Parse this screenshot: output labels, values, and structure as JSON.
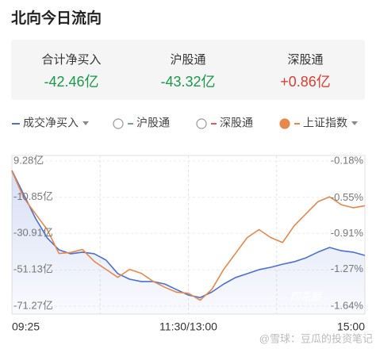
{
  "header": {
    "title": "北向今日流向"
  },
  "summary": [
    {
      "label": "合计净买入",
      "value": "-42.46亿",
      "color": "#1a9a4a"
    },
    {
      "label": "沪股通",
      "value": "-43.32亿",
      "color": "#1a9a4a"
    },
    {
      "label": "深股通",
      "value": "+0.86亿",
      "color": "#e03c31"
    }
  ],
  "watermarks": [
    "同花顺",
    "@雪球：豆瓜的投资笔记"
  ],
  "chart_data": {
    "type": "line",
    "x": [
      0,
      8,
      16,
      24,
      32,
      40,
      48,
      56,
      64,
      72,
      80,
      88,
      96,
      104,
      112,
      120,
      128,
      136,
      144,
      152,
      160,
      168,
      176,
      184,
      192,
      200,
      208,
      216,
      224,
      232,
      240
    ],
    "xlim": [
      0,
      240
    ],
    "xticks": [
      {
        "value": 0,
        "label": "09:25"
      },
      {
        "value": 120,
        "label": "11:30/13:00"
      },
      {
        "value": 240,
        "label": "15:00"
      }
    ],
    "xgrid": [
      60,
      120,
      180
    ],
    "ylim": [
      -71.27,
      9.28
    ],
    "yticks": [
      {
        "value": 9.28,
        "label": "9.28亿"
      },
      {
        "value": -10.85,
        "label": "-10.85亿"
      },
      {
        "value": -30.91,
        "label": "-30.91亿"
      },
      {
        "value": -51.13,
        "label": "-51.13亿"
      },
      {
        "value": -71.27,
        "label": "-71.27亿"
      }
    ],
    "y2lim": [
      -1.64,
      -0.18
    ],
    "y2ticks": [
      {
        "value": -0.18,
        "label": "-0.18%"
      },
      {
        "value": -0.55,
        "label": "-0.55%"
      },
      {
        "value": -0.91,
        "label": "-0.91%"
      },
      {
        "value": -1.27,
        "label": "-1.27%"
      },
      {
        "value": -1.64,
        "label": "-1.64%"
      }
    ],
    "grid": true,
    "series": [
      {
        "name": "成交净买入",
        "color": "#4a6fd6",
        "selected": true,
        "dropdown": true,
        "values": [
          4.0,
          -9.2,
          -22.4,
          -33.4,
          -40.0,
          -42.2,
          -41.3,
          -42.2,
          -45.7,
          -53.2,
          -56.3,
          -57.6,
          -57.6,
          -59.0,
          -62.1,
          -65.1,
          -66.5,
          -63.4,
          -59.0,
          -55.4,
          -53.2,
          -51.0,
          -49.7,
          -48.0,
          -46.6,
          -44.4,
          -41.3,
          -38.7,
          -40.5,
          -41.3,
          -43.1
        ]
      },
      {
        "name": "沪股通",
        "color": "#7aa08a",
        "selected": false
      },
      {
        "name": "深股通",
        "color": "#e05a5a",
        "selected": false
      },
      {
        "name": "上证指数",
        "color": "#e8874a",
        "selected": true,
        "dropdown": true,
        "axis": "y2",
        "values": [
          -0.28,
          -0.55,
          -0.71,
          -0.87,
          -1.11,
          -1.1,
          -1.07,
          -1.19,
          -1.27,
          -1.35,
          -1.27,
          -1.31,
          -1.39,
          -1.45,
          -1.5,
          -1.51,
          -1.58,
          -1.47,
          -1.27,
          -1.11,
          -0.95,
          -0.87,
          -0.95,
          -1.0,
          -0.83,
          -0.71,
          -0.59,
          -0.54,
          -0.62,
          -0.65,
          -0.63
        ]
      }
    ]
  }
}
